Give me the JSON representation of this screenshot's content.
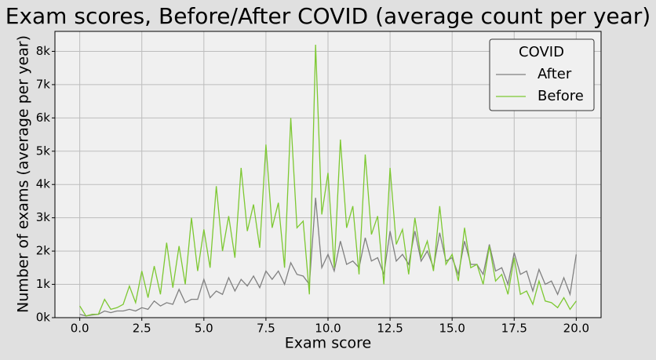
{
  "chart_data": {
    "type": "line",
    "title": "Exam scores, Before/After COVID (average count per year)",
    "x_label": "Exam score",
    "y_label": "Number of exams (average per year)",
    "legend_title": "COVID",
    "legend": "upper right",
    "grid": true,
    "x": [
      0,
      0.25,
      0.5,
      0.75,
      1,
      1.25,
      1.5,
      1.75,
      2,
      2.25,
      2.5,
      2.75,
      3,
      3.25,
      3.5,
      3.75,
      4,
      4.25,
      4.5,
      4.75,
      5,
      5.25,
      5.5,
      5.75,
      6,
      6.25,
      6.5,
      6.75,
      7,
      7.25,
      7.5,
      7.75,
      8,
      8.25,
      8.5,
      8.75,
      9,
      9.25,
      9.5,
      9.75,
      10,
      10.25,
      10.5,
      10.75,
      11,
      11.25,
      11.5,
      11.75,
      12,
      12.25,
      12.5,
      12.75,
      13,
      13.25,
      13.5,
      13.75,
      14,
      14.25,
      14.5,
      14.75,
      15,
      15.25,
      15.5,
      15.75,
      16,
      16.25,
      16.5,
      16.75,
      17,
      17.25,
      17.5,
      17.75,
      18,
      18.25,
      18.5,
      18.75,
      19,
      19.25,
      19.5,
      19.75,
      20
    ],
    "series": [
      {
        "name": "After",
        "color": "#808080",
        "values": [
          100,
          50,
          80,
          100,
          200,
          150,
          200,
          200,
          250,
          200,
          300,
          250,
          500,
          350,
          450,
          400,
          850,
          450,
          550,
          550,
          1150,
          600,
          800,
          700,
          1200,
          800,
          1150,
          950,
          1250,
          900,
          1400,
          1150,
          1400,
          1000,
          1650,
          1300,
          1250,
          1000,
          3600,
          1500,
          1900,
          1400,
          2300,
          1600,
          1700,
          1500,
          2400,
          1700,
          1800,
          1300,
          2600,
          1700,
          1900,
          1600,
          2600,
          1700,
          2000,
          1500,
          2550,
          1700,
          1800,
          1300,
          2300,
          1600,
          1600,
          1300,
          2200,
          1400,
          1500,
          1000,
          1950,
          1300,
          1400,
          800,
          1450,
          1000,
          1100,
          700,
          1200,
          700,
          1900
        ]
      },
      {
        "name": "Before",
        "color": "#7dc832",
        "values": [
          350,
          50,
          100,
          100,
          550,
          250,
          300,
          400,
          950,
          450,
          1400,
          600,
          1550,
          700,
          2250,
          900,
          2150,
          1000,
          3000,
          1400,
          2650,
          1500,
          3950,
          2000,
          3050,
          1800,
          4500,
          2600,
          3400,
          2100,
          5200,
          2700,
          3450,
          1500,
          6000,
          2700,
          2900,
          700,
          8200,
          3100,
          4350,
          1500,
          5350,
          2700,
          3350,
          1300,
          4900,
          2500,
          3050,
          1000,
          4500,
          2200,
          2650,
          1300,
          3000,
          1800,
          2300,
          1400,
          3350,
          1600,
          1900,
          1100,
          2700,
          1500,
          1600,
          1000,
          2150,
          1100,
          1300,
          700,
          1800,
          700,
          800,
          400,
          1100,
          500,
          450,
          300,
          600,
          250,
          500
        ]
      }
    ],
    "xlim": [
      -1,
      21
    ],
    "xticks": [
      {
        "value": 0,
        "label": "0.0"
      },
      2.5,
      {
        "value": 5,
        "label": "5.0"
      },
      7.5,
      {
        "value": 10,
        "label": "10.0"
      },
      12.5,
      {
        "value": 15,
        "label": "15.0"
      },
      17.5,
      {
        "value": 20,
        "label": "20.0"
      }
    ],
    "ylim": [
      0,
      8600
    ],
    "yticks": [
      {
        "value": 0,
        "label": "0k"
      },
      {
        "value": 1000,
        "label": "1k"
      },
      {
        "value": 2000,
        "label": "2k"
      },
      {
        "value": 3000,
        "label": "3k"
      },
      {
        "value": 4000,
        "label": "4k"
      },
      {
        "value": 5000,
        "label": "5k"
      },
      {
        "value": 6000,
        "label": "6k"
      },
      {
        "value": 7000,
        "label": "7k"
      },
      {
        "value": 8000,
        "label": "8k"
      }
    ]
  }
}
